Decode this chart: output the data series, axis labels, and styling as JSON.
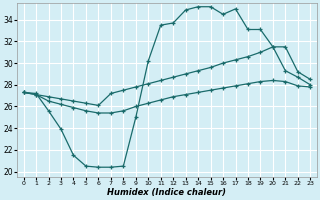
{
  "xlabel": "Humidex (Indice chaleur)",
  "x_ticks": [
    0,
    1,
    2,
    3,
    4,
    5,
    6,
    7,
    8,
    9,
    10,
    11,
    12,
    13,
    14,
    15,
    16,
    17,
    18,
    19,
    20,
    21,
    22,
    23
  ],
  "ylim": [
    19.5,
    35.5
  ],
  "yticks": [
    20,
    22,
    24,
    26,
    28,
    30,
    32,
    34
  ],
  "xlim": [
    -0.5,
    23.5
  ],
  "bg_color": "#d4eef5",
  "grid_color": "#ffffff",
  "line_color": "#1a6b6b",
  "line1_x": [
    0,
    1,
    2,
    3,
    4,
    5,
    6,
    7,
    8,
    9,
    10,
    11,
    12,
    13,
    14,
    15,
    16,
    17,
    18,
    19,
    20,
    21,
    22,
    23
  ],
  "line1_y": [
    27.3,
    27.2,
    25.6,
    23.9,
    21.5,
    20.5,
    20.4,
    20.4,
    20.5,
    25.0,
    30.2,
    33.5,
    33.7,
    34.9,
    35.2,
    35.2,
    34.5,
    35.0,
    33.1,
    33.1,
    31.5,
    29.3,
    28.7,
    28.0
  ],
  "line2_x": [
    0,
    1,
    2,
    3,
    4,
    5,
    6,
    7,
    8,
    9,
    10,
    11,
    12,
    13,
    14,
    15,
    16,
    17,
    18,
    19,
    20,
    21,
    22,
    23
  ],
  "line2_y": [
    27.3,
    27.1,
    26.9,
    26.7,
    26.5,
    26.3,
    26.1,
    27.2,
    27.5,
    27.8,
    28.1,
    28.4,
    28.7,
    29.0,
    29.3,
    29.6,
    30.0,
    30.3,
    30.6,
    31.0,
    31.5,
    31.5,
    29.2,
    28.5
  ],
  "line3_x": [
    0,
    1,
    2,
    3,
    4,
    5,
    6,
    7,
    8,
    9,
    10,
    11,
    12,
    13,
    14,
    15,
    16,
    17,
    18,
    19,
    20,
    21,
    22,
    23
  ],
  "line3_y": [
    27.3,
    27.1,
    26.5,
    26.2,
    25.9,
    25.6,
    25.4,
    25.4,
    25.6,
    26.0,
    26.3,
    26.6,
    26.9,
    27.1,
    27.3,
    27.5,
    27.7,
    27.9,
    28.1,
    28.3,
    28.4,
    28.3,
    27.9,
    27.8
  ]
}
